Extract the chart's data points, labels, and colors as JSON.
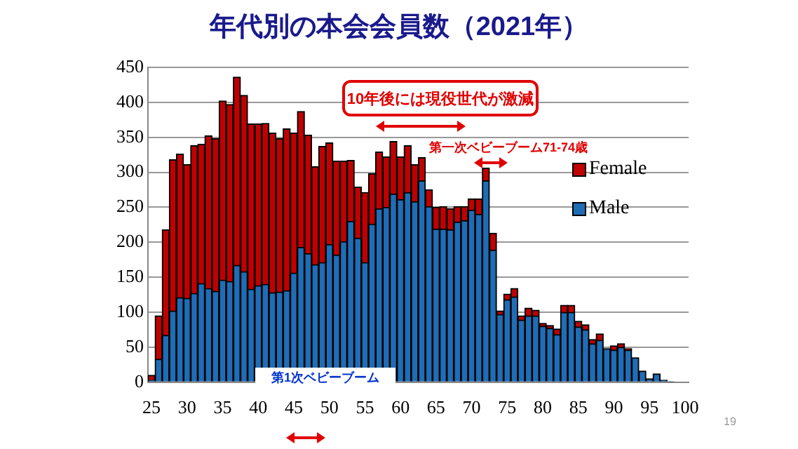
{
  "chart_data": {
    "type": "bar",
    "title": "年代別の本会会員数（2021年）",
    "stacked": true,
    "legend": "right",
    "grid": "y",
    "categories": [
      "25",
      null,
      null,
      null,
      null,
      "30",
      null,
      null,
      null,
      null,
      "35",
      null,
      null,
      null,
      null,
      "40",
      null,
      null,
      null,
      null,
      "45",
      null,
      null,
      null,
      null,
      "50",
      null,
      null,
      null,
      null,
      "55",
      null,
      null,
      null,
      null,
      "60",
      null,
      null,
      null,
      null,
      "65",
      null,
      null,
      null,
      null,
      "70",
      null,
      null,
      null,
      null,
      "75",
      null,
      null,
      null,
      null,
      "80",
      null,
      null,
      null,
      null,
      "85",
      null,
      null,
      null,
      null,
      "90",
      null,
      null,
      null,
      null,
      "95",
      null,
      null,
      null,
      null,
      "100"
    ],
    "ylim": [
      0,
      450
    ],
    "yticks": [
      0,
      50,
      100,
      150,
      200,
      250,
      300,
      350,
      400,
      450
    ],
    "series": [
      {
        "name": "Male",
        "color": "#1f6db5",
        "values": [
          3,
          33,
          67,
          102,
          121,
          120,
          127,
          141,
          134,
          130,
          146,
          144,
          167,
          158,
          133,
          138,
          140,
          128,
          129,
          131,
          156,
          193,
          184,
          168,
          171,
          197,
          182,
          201,
          230,
          206,
          171,
          226,
          248,
          250,
          269,
          261,
          271,
          258,
          288,
          251,
          219,
          219,
          218,
          229,
          231,
          246,
          240,
          288,
          189,
          97,
          118,
          122,
          89,
          95,
          95,
          80,
          77,
          68,
          100,
          100,
          79,
          75,
          55,
          60,
          48,
          46,
          50,
          46,
          35,
          16,
          5,
          12,
          3,
          1,
          null,
          null
        ]
      },
      {
        "name": "Female",
        "color": "#c00000",
        "values": [
          7,
          62,
          151,
          216,
          205,
          191,
          211,
          199,
          218,
          218,
          256,
          253,
          269,
          252,
          236,
          231,
          230,
          228,
          219,
          231,
          200,
          194,
          169,
          140,
          166,
          145,
          134,
          115,
          87,
          73,
          100,
          72,
          81,
          72,
          75,
          61,
          67,
          53,
          33,
          24,
          31,
          32,
          30,
          22,
          20,
          16,
          22,
          18,
          24,
          5,
          8,
          12,
          6,
          11,
          8,
          4,
          4,
          8,
          10,
          10,
          8,
          7,
          6,
          9,
          0,
          6,
          5,
          2,
          0,
          0,
          0,
          0,
          0,
          0,
          null,
          null
        ]
      }
    ],
    "annotations": [
      "10年後には現役世代が激減",
      "第一次ベビーブーム71-74歳",
      "第1次ベビーブーム",
      "19"
    ]
  }
}
